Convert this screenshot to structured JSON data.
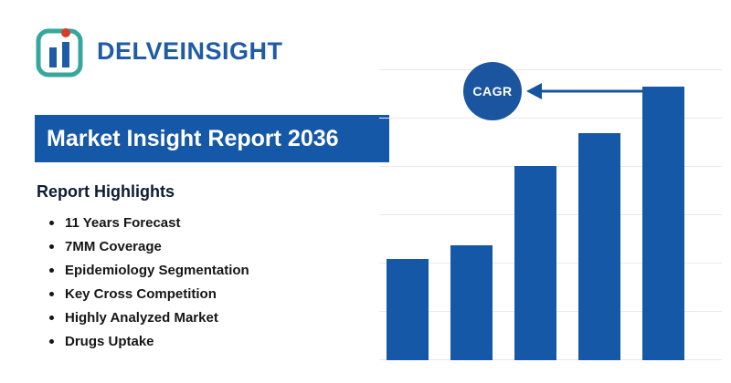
{
  "logo": {
    "text": "DELVEINSIGHT"
  },
  "banner": {
    "title": "Market Insight Report 2036"
  },
  "highlights": {
    "heading": "Report Highlights",
    "items": [
      "11 Years Forecast",
      "7MM Coverage",
      "Epidemiology Segmentation",
      "Key Cross Competition",
      "Highly Analyzed Market",
      "Drugs Uptake"
    ]
  },
  "chart": {
    "cagr_badge": "CAGR"
  },
  "chart_data": {
    "type": "bar",
    "categories": [
      "",
      "",
      "",
      "",
      ""
    ],
    "values": [
      37,
      42,
      71,
      83,
      100
    ],
    "title": "",
    "xlabel": "",
    "ylabel": "",
    "ylim": [
      0,
      100
    ],
    "grid": "horizontal",
    "legend": false,
    "bar_color": "#1558a8",
    "annotations": [
      {
        "label": "CAGR",
        "shape": "circle-badge",
        "arrow": "points-left-from-tallest-bar"
      }
    ]
  },
  "colors": {
    "primary_blue": "#1558a8",
    "logo_blue": "#1f5ba6",
    "logo_teal": "#35a79c",
    "logo_red": "#d93a2b",
    "badge_blue": "#1b55a0",
    "grid_gray": "#e9e9e9",
    "text_dark": "#161616"
  }
}
